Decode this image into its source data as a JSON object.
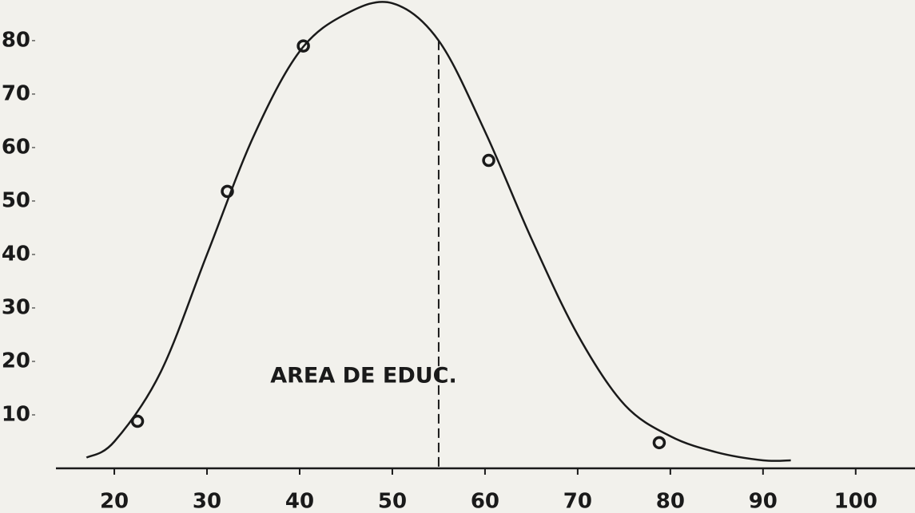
{
  "chart_data": {
    "type": "line",
    "annotations": [
      {
        "text": "AREA DE EDUC."
      }
    ],
    "reference_line": {
      "x": 55,
      "y": 80
    },
    "series": [
      {
        "type": "line",
        "color": "#1a1a1a",
        "x": [
          17,
          20,
          25,
          30,
          35,
          40,
          45,
          50,
          55,
          60,
          65,
          70,
          75,
          80,
          85,
          90,
          93
        ],
        "values": [
          2,
          5,
          18,
          40,
          62,
          78,
          85,
          87,
          80,
          63,
          43,
          25,
          12,
          6,
          3,
          1.5,
          1.5
        ]
      },
      {
        "type": "scatter",
        "color": "#1a1a1a",
        "x": [
          22.5,
          32.2,
          40.4,
          60.4,
          78.8
        ],
        "values": [
          8.8,
          51.8,
          79,
          57.6,
          4.8
        ]
      }
    ],
    "xlim": [
      13.7,
      106.4
    ],
    "ylim": [
      0,
      87.6
    ],
    "xticks": [
      20,
      30,
      40,
      50,
      60,
      70,
      80,
      90,
      100
    ],
    "yticks": [
      10,
      20,
      30,
      40,
      50,
      60,
      70,
      80
    ],
    "grid": false
  }
}
